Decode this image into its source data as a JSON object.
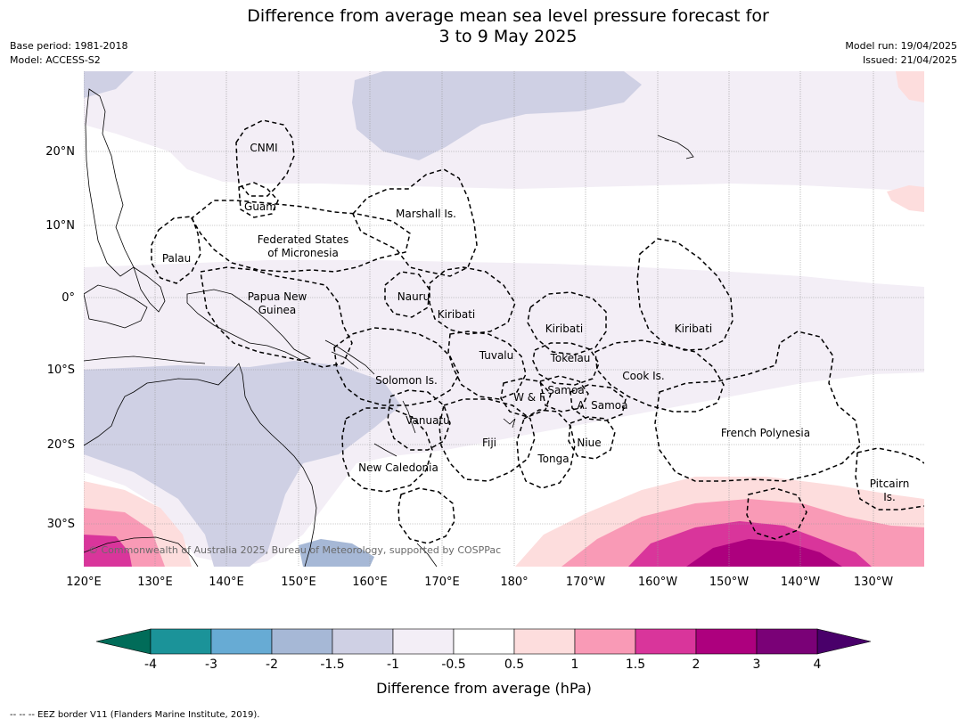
{
  "title_line1": "Difference from average mean sea level pressure forecast for",
  "title_line2": "3 to 9 May 2025",
  "base_period": "Base period: 1981-2018",
  "model": "Model: ACCESS-S2",
  "model_run": "Model run: 19/04/2025",
  "issued": "Issued: 21/04/2025",
  "lon_labels": [
    "120°E",
    "130°E",
    "140°E",
    "150°E",
    "160°E",
    "170°E",
    "180°",
    "170°W",
    "160°W",
    "150°W",
    "140°W",
    "130°W"
  ],
  "lat_labels": [
    "20°N",
    "10°N",
    "0°",
    "10°S",
    "20°S",
    "30°S"
  ],
  "regions": {
    "cnmi": "CNMI",
    "guam": "Guam",
    "marshall": "Marshall Is.",
    "fsm_1": "Federated States",
    "fsm_2": "of Micronesia",
    "palau": "Palau",
    "png_1": "Papua New",
    "png_2": "Guinea",
    "nauru": "Nauru",
    "kiribati_w": "Kiribati",
    "kiribati_c": "Kiribati",
    "kiribati_e": "Kiribati",
    "tuvalu": "Tuvalu",
    "tokelau": "Tokelau",
    "solomon": "Solomon Is.",
    "wf": "W & F",
    "samoa": "Samoa",
    "asamoa": "A. Samoa",
    "cook": "Cook Is.",
    "vanuatu": "Vanuatu",
    "fiji": "Fiji",
    "niue": "Niue",
    "tonga": "Tonga",
    "new_caledonia": "New Caledonia",
    "french_polynesia": "French Polynesia",
    "pitcairn_1": "Pitcairn",
    "pitcairn_2": "Is."
  },
  "copyright": "© Commonwealth of Australia 2025, Bureau of Meteorology, supported by COSPPac",
  "colorbar": {
    "ticks": [
      "-4",
      "-3",
      "-2",
      "-1.5",
      "-1",
      "-0.5",
      "0.5",
      "1",
      "1.5",
      "2",
      "3",
      "4"
    ],
    "colors": [
      "#1b9399",
      "#67abd4",
      "#a6b8d6",
      "#cfd0e4",
      "#f3eef6",
      "#ffffff",
      "#fddddd",
      "#f99ab6",
      "#d9359b",
      "#ad007e",
      "#7a0177"
    ],
    "low_extend_color": "#016c59",
    "high_extend_color": "#49006a",
    "label": "Difference from average (hPa)"
  },
  "footer": "--  --  -- EEZ border V11 (Flanders Marine Institute, 2019)."
}
